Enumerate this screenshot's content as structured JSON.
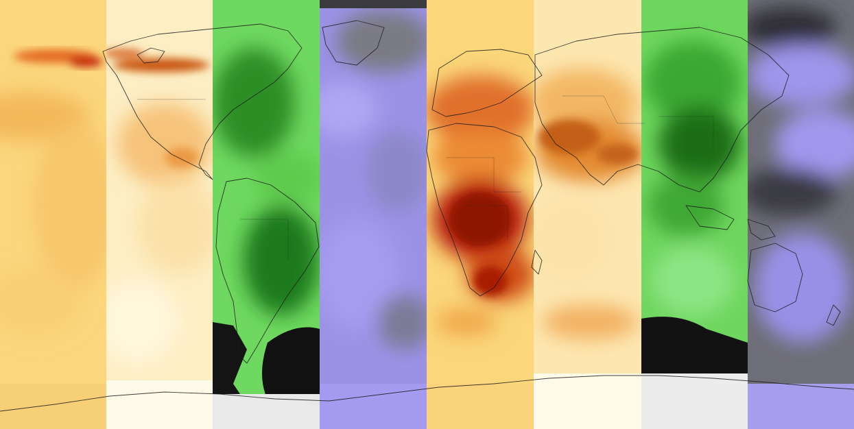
{
  "map": {
    "kind": "global-atmospheric-composite",
    "projection": "equirectangular",
    "panel_count": 8,
    "panels": [
      {
        "id": "p1",
        "palette": "yellow-orange-red",
        "colors": [
          "#fbd97e",
          "#f6be62",
          "#e9973c"
        ]
      },
      {
        "id": "p2",
        "palette": "cream-orange",
        "colors": [
          "#fff6dc",
          "#fbe2a6",
          "#f0b565"
        ]
      },
      {
        "id": "p3",
        "palette": "green",
        "colors": [
          "#7fe06a",
          "#3fb534",
          "#1e7a1a"
        ]
      },
      {
        "id": "p4",
        "palette": "purple-gray",
        "colors": [
          "#a99cf4",
          "#8f86d9",
          "#7b7b86"
        ]
      },
      {
        "id": "p5",
        "palette": "yellow-orange-red",
        "colors": [
          "#fbd97e",
          "#e9712b",
          "#b51e06"
        ]
      },
      {
        "id": "p6",
        "palette": "cream-orange",
        "colors": [
          "#fff4d2",
          "#f7c878",
          "#e08a2e"
        ]
      },
      {
        "id": "p7",
        "palette": "green",
        "colors": [
          "#77dc65",
          "#3ab030",
          "#1a6e16"
        ]
      },
      {
        "id": "p8",
        "palette": "gray-purple",
        "colors": [
          "#9a92e8",
          "#6f6f79",
          "#2d2d33"
        ]
      }
    ],
    "antarctica_color": "#f1efee",
    "coastline_color": "#1a1a1a"
  }
}
